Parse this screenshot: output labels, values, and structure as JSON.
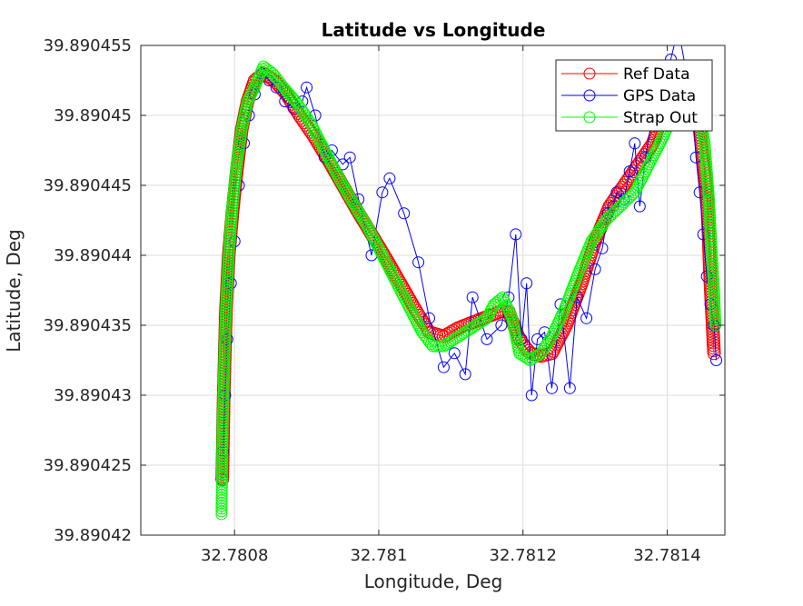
{
  "chart_data": {
    "type": "line",
    "title": "Latitude vs Longitude",
    "xlabel": "Longitude, Deg",
    "ylabel": "Latitude, Deg",
    "xlim": [
      32.78067,
      32.78148
    ],
    "ylim": [
      39.89042,
      39.890455
    ],
    "xticks": [
      32.7808,
      32.781,
      32.7812,
      32.7814
    ],
    "xtick_labels": [
      "32.7808",
      "32.781",
      "32.7812",
      "32.7814"
    ],
    "yticks": [
      39.89042,
      39.890425,
      39.89043,
      39.890435,
      39.89044,
      39.890445,
      39.89045,
      39.890455
    ],
    "ytick_labels": [
      "39.89042",
      "39.890425",
      "39.89043",
      "39.890435",
      "39.89044",
      "39.890445",
      "39.89045",
      "39.890455"
    ],
    "grid": true,
    "legend_position": "top-right",
    "marker": "circle",
    "series": [
      {
        "name": "Ref Data",
        "color": "#ff0000",
        "x": [
          32.780783,
          32.780785,
          32.780788,
          32.780792,
          32.780797,
          32.780803,
          32.78081,
          32.780818,
          32.780828,
          32.78084,
          32.780855,
          32.780872,
          32.78089,
          32.78091,
          32.78093,
          32.78095,
          32.78097,
          32.78099,
          32.78101,
          32.78103,
          32.78105,
          32.78107,
          32.78109,
          32.78111,
          32.78113,
          32.78115,
          32.78117,
          32.78118,
          32.781195,
          32.78121,
          32.781225,
          32.78124,
          32.78126,
          32.78128,
          32.7813,
          32.78132,
          32.78134,
          32.78136,
          32.78138,
          32.7814,
          32.78142,
          32.781435,
          32.781445,
          32.781455,
          32.78146,
          32.781465
        ],
        "y": [
          39.890424,
          39.89043,
          39.890436,
          39.89044,
          39.890443,
          39.890446,
          39.890449,
          39.890451,
          39.8904525,
          39.890453,
          39.8904525,
          39.8904515,
          39.89045,
          39.8904485,
          39.8904468,
          39.890445,
          39.8904432,
          39.8904415,
          39.8904398,
          39.890438,
          39.8904362,
          39.8904345,
          39.8904342,
          39.8904348,
          39.8904352,
          39.8904356,
          39.890436,
          39.890436,
          39.890434,
          39.890433,
          39.8904328,
          39.890433,
          39.890435,
          39.8904378,
          39.890441,
          39.8904435,
          39.890445,
          39.8904465,
          39.890448,
          39.890451,
          39.8904535,
          39.890452,
          39.890449,
          39.8904445,
          39.890438,
          39.890433
        ]
      },
      {
        "name": "GPS Data",
        "color": "#0000ff",
        "x": [
          32.780782,
          32.780784,
          32.780787,
          32.78079,
          32.780795,
          32.7808,
          32.780806,
          32.780813,
          32.78082,
          32.780828,
          32.780838,
          32.780848,
          32.780858,
          32.78087,
          32.780882,
          32.780894,
          32.7809,
          32.780912,
          32.780925,
          32.780935,
          32.78095,
          32.78096,
          32.780972,
          32.78099,
          32.781005,
          32.781015,
          32.781035,
          32.781055,
          32.78107,
          32.78109,
          32.781105,
          32.78112,
          32.78113,
          32.78115,
          32.78117,
          32.78118,
          32.78119,
          32.781198,
          32.781205,
          32.781212,
          32.78122,
          32.78123,
          32.78124,
          32.781252,
          32.781265,
          32.781275,
          32.781288,
          32.7813,
          32.78131,
          32.781318,
          32.781325,
          32.78133,
          32.78134,
          32.781348,
          32.781355,
          32.781362,
          32.78137,
          32.781378,
          32.781386,
          32.781395,
          32.781405,
          32.781412,
          32.781418,
          32.781425,
          32.78143,
          32.781435,
          32.78144,
          32.781445,
          32.78145,
          32.781455,
          32.78146,
          32.781465,
          32.781468
        ],
        "y": [
          39.890424,
          39.890426,
          39.89043,
          39.890434,
          39.890438,
          39.890441,
          39.890445,
          39.890448,
          39.89045,
          39.8904515,
          39.890453,
          39.8904525,
          39.890452,
          39.890451,
          39.8904505,
          39.890451,
          39.890452,
          39.89045,
          39.890447,
          39.8904475,
          39.8904465,
          39.890447,
          39.890444,
          39.89044,
          39.8904445,
          39.8904455,
          39.890443,
          39.8904395,
          39.8904355,
          39.890432,
          39.890433,
          39.8904315,
          39.890437,
          39.890434,
          39.890435,
          39.890437,
          39.8904415,
          39.890434,
          39.890438,
          39.89043,
          39.890434,
          39.8904345,
          39.8904305,
          39.8904365,
          39.8904305,
          39.890437,
          39.8904355,
          39.890439,
          39.8904405,
          39.890443,
          39.8904435,
          39.8904445,
          39.890444,
          39.890446,
          39.890448,
          39.8904435,
          39.890447,
          39.8904495,
          39.8904515,
          39.890452,
          39.890454,
          39.8904555,
          39.8904555,
          39.8904535,
          39.890453,
          39.8904505,
          39.890447,
          39.8904445,
          39.8904415,
          39.8904385,
          39.8904365,
          39.890435,
          39.8904325
        ]
      },
      {
        "name": "Strap Out",
        "color": "#00ff00",
        "x": [
          32.780782,
          32.780783,
          32.780785,
          32.780788,
          32.780792,
          32.780797,
          32.780803,
          32.78081,
          32.780818,
          32.780828,
          32.78084,
          32.780853,
          32.780868,
          32.780885,
          32.780905,
          32.780925,
          32.780945,
          32.780965,
          32.780985,
          32.781005,
          32.781025,
          32.781045,
          32.78106,
          32.781075,
          32.78109,
          32.781105,
          32.78112,
          32.781135,
          32.78115,
          32.78116,
          32.781172,
          32.781185,
          32.781195,
          32.78121,
          32.781225,
          32.78124,
          32.781258,
          32.781275,
          32.781295,
          32.781315,
          32.781335,
          32.781355,
          32.781375,
          32.781395,
          32.781415,
          32.781432,
          32.781442,
          32.781452,
          32.781458,
          32.781462,
          32.781465,
          32.781467
        ],
        "y": [
          39.8904215,
          39.890426,
          39.890431,
          39.890436,
          39.89044,
          39.8904435,
          39.8904465,
          39.890449,
          39.890451,
          39.890452,
          39.8904535,
          39.890453,
          39.890452,
          39.890451,
          39.8904495,
          39.8904475,
          39.8904455,
          39.8904437,
          39.890442,
          39.89044,
          39.890438,
          39.890436,
          39.8904345,
          39.8904335,
          39.8904335,
          39.890434,
          39.8904345,
          39.890435,
          39.8904355,
          39.8904365,
          39.890437,
          39.8904355,
          39.890433,
          39.8904325,
          39.890433,
          39.8904342,
          39.8904362,
          39.8904385,
          39.890441,
          39.8904425,
          39.8904435,
          39.8904445,
          39.8904465,
          39.8904485,
          39.890451,
          39.8904535,
          39.890451,
          39.890448,
          39.890444,
          39.89044,
          39.8904375,
          39.890435
        ]
      }
    ]
  }
}
